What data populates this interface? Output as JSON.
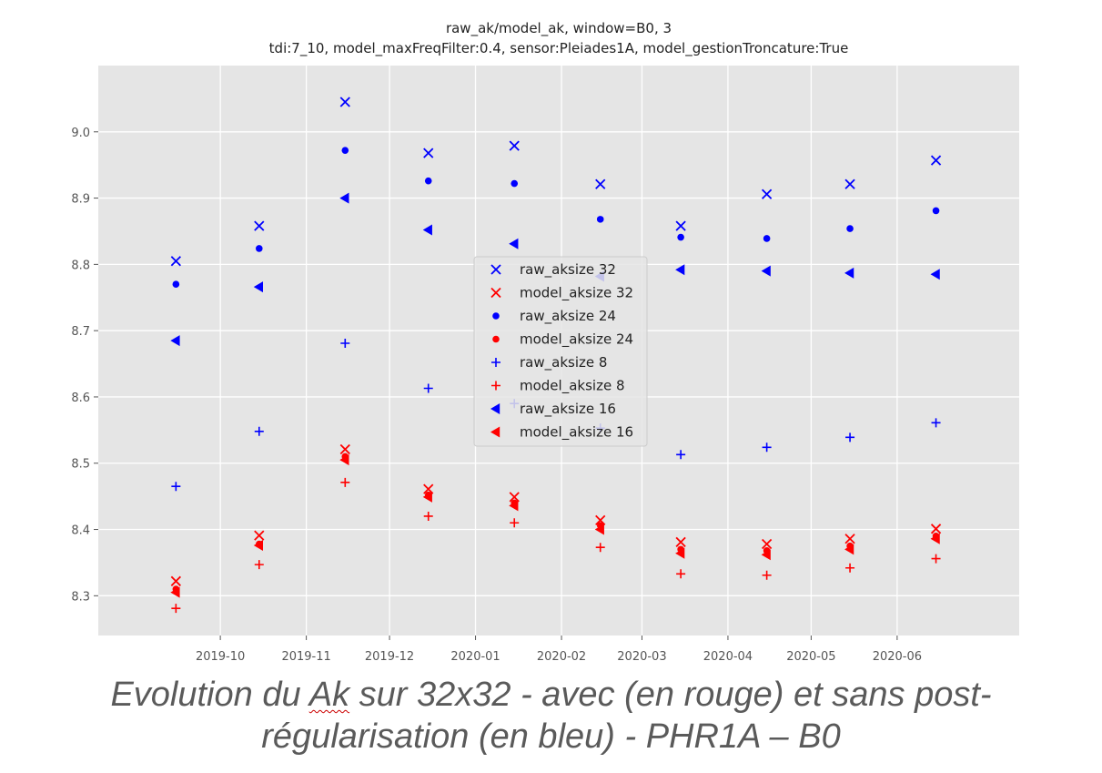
{
  "caption": {
    "line1_pre": "Evolution du ",
    "line1_ak": "Ak",
    "line1_post": " sur 32x32 - avec (en rouge) et sans post-",
    "line2": "régularisation (en bleu) - PHR1A – B0"
  },
  "chart_data": {
    "type": "scatter",
    "title": "raw_ak/model_ak, window=B0, 3",
    "subtitle": "tdi:7_10, model_maxFreqFilter:0.4, sensor:Pleiades1A, model_gestionTroncature:True",
    "xlabel": "",
    "ylabel": "",
    "x_type": "date",
    "xlim": [
      "2019-08-18",
      "2020-07-15"
    ],
    "ylim": [
      8.24,
      9.1
    ],
    "x_ticks": [
      "2019-10",
      "2019-11",
      "2019-12",
      "2020-01",
      "2020-02",
      "2020-03",
      "2020-04",
      "2020-05",
      "2020-06"
    ],
    "x_tick_dates": [
      "2019-10-01",
      "2019-11-01",
      "2019-12-01",
      "2020-01-01",
      "2020-02-01",
      "2020-03-01",
      "2020-04-01",
      "2020-05-01",
      "2020-06-01"
    ],
    "y_ticks": [
      "8.3",
      "8.4",
      "8.5",
      "8.6",
      "8.7",
      "8.8",
      "8.9",
      "9.0"
    ],
    "y_tick_values": [
      8.3,
      8.4,
      8.5,
      8.6,
      8.7,
      8.8,
      8.9,
      9.0
    ],
    "x": [
      "2019-09-15",
      "2019-10-15",
      "2019-11-15",
      "2019-12-15",
      "2020-01-15",
      "2020-02-15",
      "2020-03-15",
      "2020-04-15",
      "2020-05-15",
      "2020-06-15"
    ],
    "grid": true,
    "legend_position": "center",
    "colors": {
      "raw": "#0000ff",
      "model": "#ff0000",
      "background": "#e5e5e5",
      "grid": "#ffffff"
    },
    "series": [
      {
        "name": "raw_aksize 32",
        "marker": "x",
        "color": "#0000ff",
        "values": [
          8.805,
          8.858,
          9.045,
          8.968,
          8.979,
          8.921,
          8.858,
          8.906,
          8.921,
          8.957
        ]
      },
      {
        "name": "model_aksize 32",
        "marker": "x",
        "color": "#ff0000",
        "values": [
          8.322,
          8.391,
          8.521,
          8.461,
          8.449,
          8.414,
          8.381,
          8.378,
          8.386,
          8.401
        ]
      },
      {
        "name": "raw_aksize 24",
        "marker": "dot",
        "color": "#0000ff",
        "values": [
          8.77,
          8.824,
          8.972,
          8.926,
          8.922,
          8.868,
          8.841,
          8.839,
          8.854,
          8.881
        ]
      },
      {
        "name": "model_aksize 24",
        "marker": "dot",
        "color": "#ff0000",
        "values": [
          8.31,
          8.378,
          8.51,
          8.452,
          8.44,
          8.406,
          8.37,
          8.368,
          8.375,
          8.39
        ]
      },
      {
        "name": "raw_aksize 8",
        "marker": "plus",
        "color": "#0000ff",
        "values": [
          8.465,
          8.548,
          8.681,
          8.613,
          8.59,
          8.553,
          8.513,
          8.524,
          8.539,
          8.561
        ]
      },
      {
        "name": "model_aksize 8",
        "marker": "plus",
        "color": "#ff0000",
        "values": [
          8.281,
          8.347,
          8.471,
          8.42,
          8.41,
          8.373,
          8.333,
          8.331,
          8.342,
          8.356
        ]
      },
      {
        "name": "raw_aksize 16",
        "marker": "triangle-left",
        "color": "#0000ff",
        "values": [
          8.685,
          8.766,
          8.9,
          8.852,
          8.831,
          8.782,
          8.792,
          8.79,
          8.787,
          8.785
        ]
      },
      {
        "name": "model_aksize 16",
        "marker": "triangle-left",
        "color": "#ff0000",
        "values": [
          8.305,
          8.376,
          8.505,
          8.449,
          8.436,
          8.4,
          8.364,
          8.362,
          8.37,
          8.386
        ]
      }
    ]
  }
}
